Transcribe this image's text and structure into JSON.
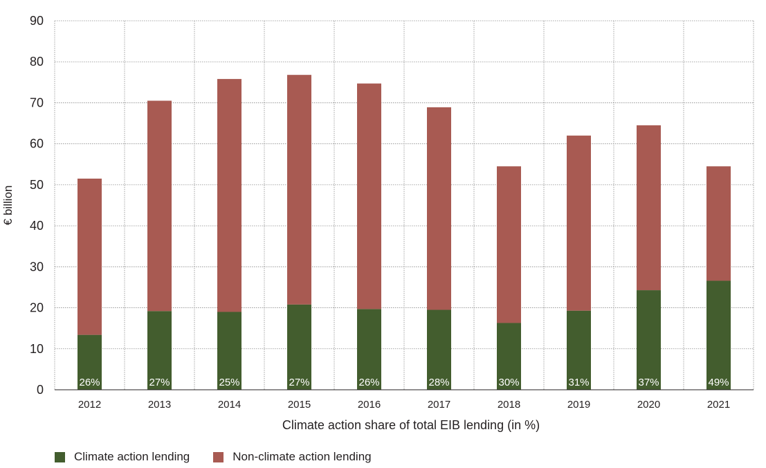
{
  "colors": {
    "climate": "#435d2e",
    "non_climate": "#a85a52",
    "grid": "#8a8a8a",
    "axis": "#231f20",
    "label_inside": "#ffffff"
  },
  "chart_data": {
    "type": "bar",
    "stacked": true,
    "categories": [
      "2012",
      "2013",
      "2014",
      "2015",
      "2016",
      "2017",
      "2018",
      "2019",
      "2020",
      "2021"
    ],
    "series": [
      {
        "name": "Climate action lending",
        "values": [
          13.4,
          19.2,
          19.0,
          20.8,
          19.7,
          19.5,
          16.3,
          19.3,
          24.3,
          26.6
        ]
      },
      {
        "name": "Non-climate action lending",
        "values": [
          38.1,
          51.3,
          56.8,
          56.0,
          55.0,
          49.4,
          38.2,
          42.7,
          40.2,
          27.9
        ]
      }
    ],
    "totals": [
      51.5,
      70.5,
      75.8,
      76.8,
      74.7,
      68.9,
      54.5,
      62.0,
      64.5,
      54.5
    ],
    "data_labels": [
      "26%",
      "27%",
      "25%",
      "27%",
      "26%",
      "28%",
      "30%",
      "31%",
      "37%",
      "49%"
    ],
    "title": "",
    "xlabel": "Climate action share of total EIB lending (in %)",
    "ylabel": "€ billion",
    "ylim": [
      0,
      90
    ],
    "yticks": [
      0,
      10,
      20,
      30,
      40,
      50,
      60,
      70,
      80,
      90
    ],
    "grid": true,
    "legend_position": "bottom-left"
  },
  "legend": [
    {
      "label": "Climate action lending",
      "color": "#435d2e"
    },
    {
      "label": "Non-climate action lending",
      "color": "#a85a52"
    }
  ]
}
